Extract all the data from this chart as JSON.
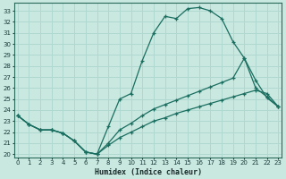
{
  "xlabel": "Humidex (Indice chaleur)",
  "bg_color": "#c8e8e0",
  "grid_color": "#b0d8d0",
  "line_color": "#1a6e60",
  "xlim": [
    -0.3,
    23.3
  ],
  "ylim": [
    19.7,
    33.7
  ],
  "yticks": [
    20,
    21,
    22,
    23,
    24,
    25,
    26,
    27,
    28,
    29,
    30,
    31,
    32,
    33
  ],
  "xticks": [
    0,
    1,
    2,
    3,
    4,
    5,
    6,
    7,
    8,
    9,
    10,
    11,
    12,
    13,
    14,
    15,
    16,
    17,
    18,
    19,
    20,
    21,
    22,
    23
  ],
  "line1_x": [
    0,
    1,
    2,
    3,
    4,
    5,
    6,
    7,
    8,
    9,
    10,
    11,
    12,
    13,
    14,
    15,
    16,
    17,
    18,
    19,
    20,
    21,
    22,
    23
  ],
  "line1_y": [
    23.5,
    22.7,
    22.2,
    22.2,
    21.9,
    21.2,
    20.2,
    20.0,
    22.5,
    25.0,
    25.5,
    28.5,
    31.0,
    32.5,
    32.3,
    33.2,
    33.3,
    33.0,
    32.3,
    30.2,
    28.7,
    26.7,
    25.1,
    24.3
  ],
  "line2_x": [
    0,
    1,
    2,
    3,
    4,
    5,
    6,
    7,
    8,
    9,
    10,
    11,
    12,
    13,
    14,
    15,
    16,
    17,
    18,
    19,
    20,
    21,
    22,
    23
  ],
  "line2_y": [
    23.5,
    22.7,
    22.2,
    22.2,
    21.9,
    21.2,
    20.2,
    20.0,
    21.0,
    22.2,
    22.8,
    23.5,
    24.1,
    24.5,
    24.9,
    25.3,
    25.7,
    26.1,
    26.5,
    26.9,
    28.7,
    26.0,
    25.2,
    24.3
  ],
  "line3_x": [
    0,
    1,
    2,
    3,
    4,
    5,
    6,
    7,
    8,
    9,
    10,
    11,
    12,
    13,
    14,
    15,
    16,
    17,
    18,
    19,
    20,
    21,
    22,
    23
  ],
  "line3_y": [
    23.5,
    22.7,
    22.2,
    22.2,
    21.9,
    21.2,
    20.2,
    20.0,
    20.8,
    21.5,
    22.0,
    22.5,
    23.0,
    23.3,
    23.7,
    24.0,
    24.3,
    24.6,
    24.9,
    25.2,
    25.5,
    25.8,
    25.5,
    24.3
  ]
}
